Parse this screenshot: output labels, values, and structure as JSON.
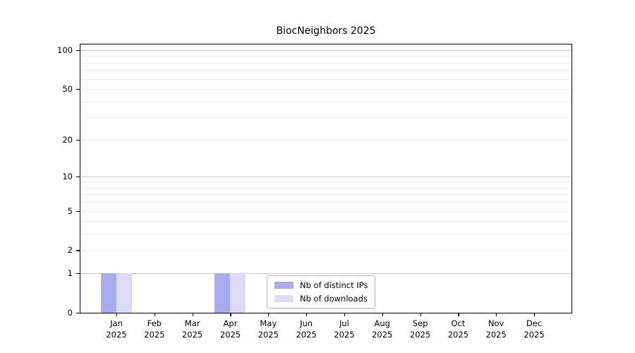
{
  "figure": {
    "title": "BiocNeighbors 2025"
  },
  "chart_data": {
    "type": "bar",
    "title": "BiocNeighbors 2025",
    "categories": [
      "Jan",
      "Feb",
      "Mar",
      "Apr",
      "May",
      "Jun",
      "Jul",
      "Aug",
      "Sep",
      "Oct",
      "Nov",
      "Dec"
    ],
    "year_label": "2025",
    "series": [
      {
        "name": "Nb of distinct IPs",
        "color": "#aaaaee",
        "values": [
          1,
          0,
          0,
          1,
          0,
          0,
          0,
          0,
          0,
          0,
          0,
          0
        ]
      },
      {
        "name": "Nb of downloads",
        "color": "#dcdcf7",
        "values": [
          1,
          0,
          0,
          1,
          0,
          0,
          0,
          0,
          0,
          0,
          0,
          0
        ]
      }
    ],
    "xlabel": "",
    "ylabel": "",
    "yscale": "log1p",
    "ylim": [
      0,
      110
    ],
    "yticks": [
      0,
      1,
      2,
      5,
      10,
      20,
      50,
      100
    ],
    "grid": {
      "on": true,
      "major_lines": [
        1,
        10,
        100
      ],
      "minor_lines": [
        2,
        3,
        4,
        5,
        6,
        7,
        8,
        9,
        20,
        30,
        40,
        50,
        60,
        70,
        80,
        90
      ]
    },
    "legend_position": "inside-bottom-center"
  },
  "colors": {
    "background": "#ffffff",
    "axis": "#000000",
    "grid_major": "#c8c8c8",
    "grid_minor": "#ebebeb",
    "legend_border": "#b3b3b3",
    "bar_distinct_ips": "#aaaaee",
    "bar_downloads": "#dcdcf7"
  }
}
